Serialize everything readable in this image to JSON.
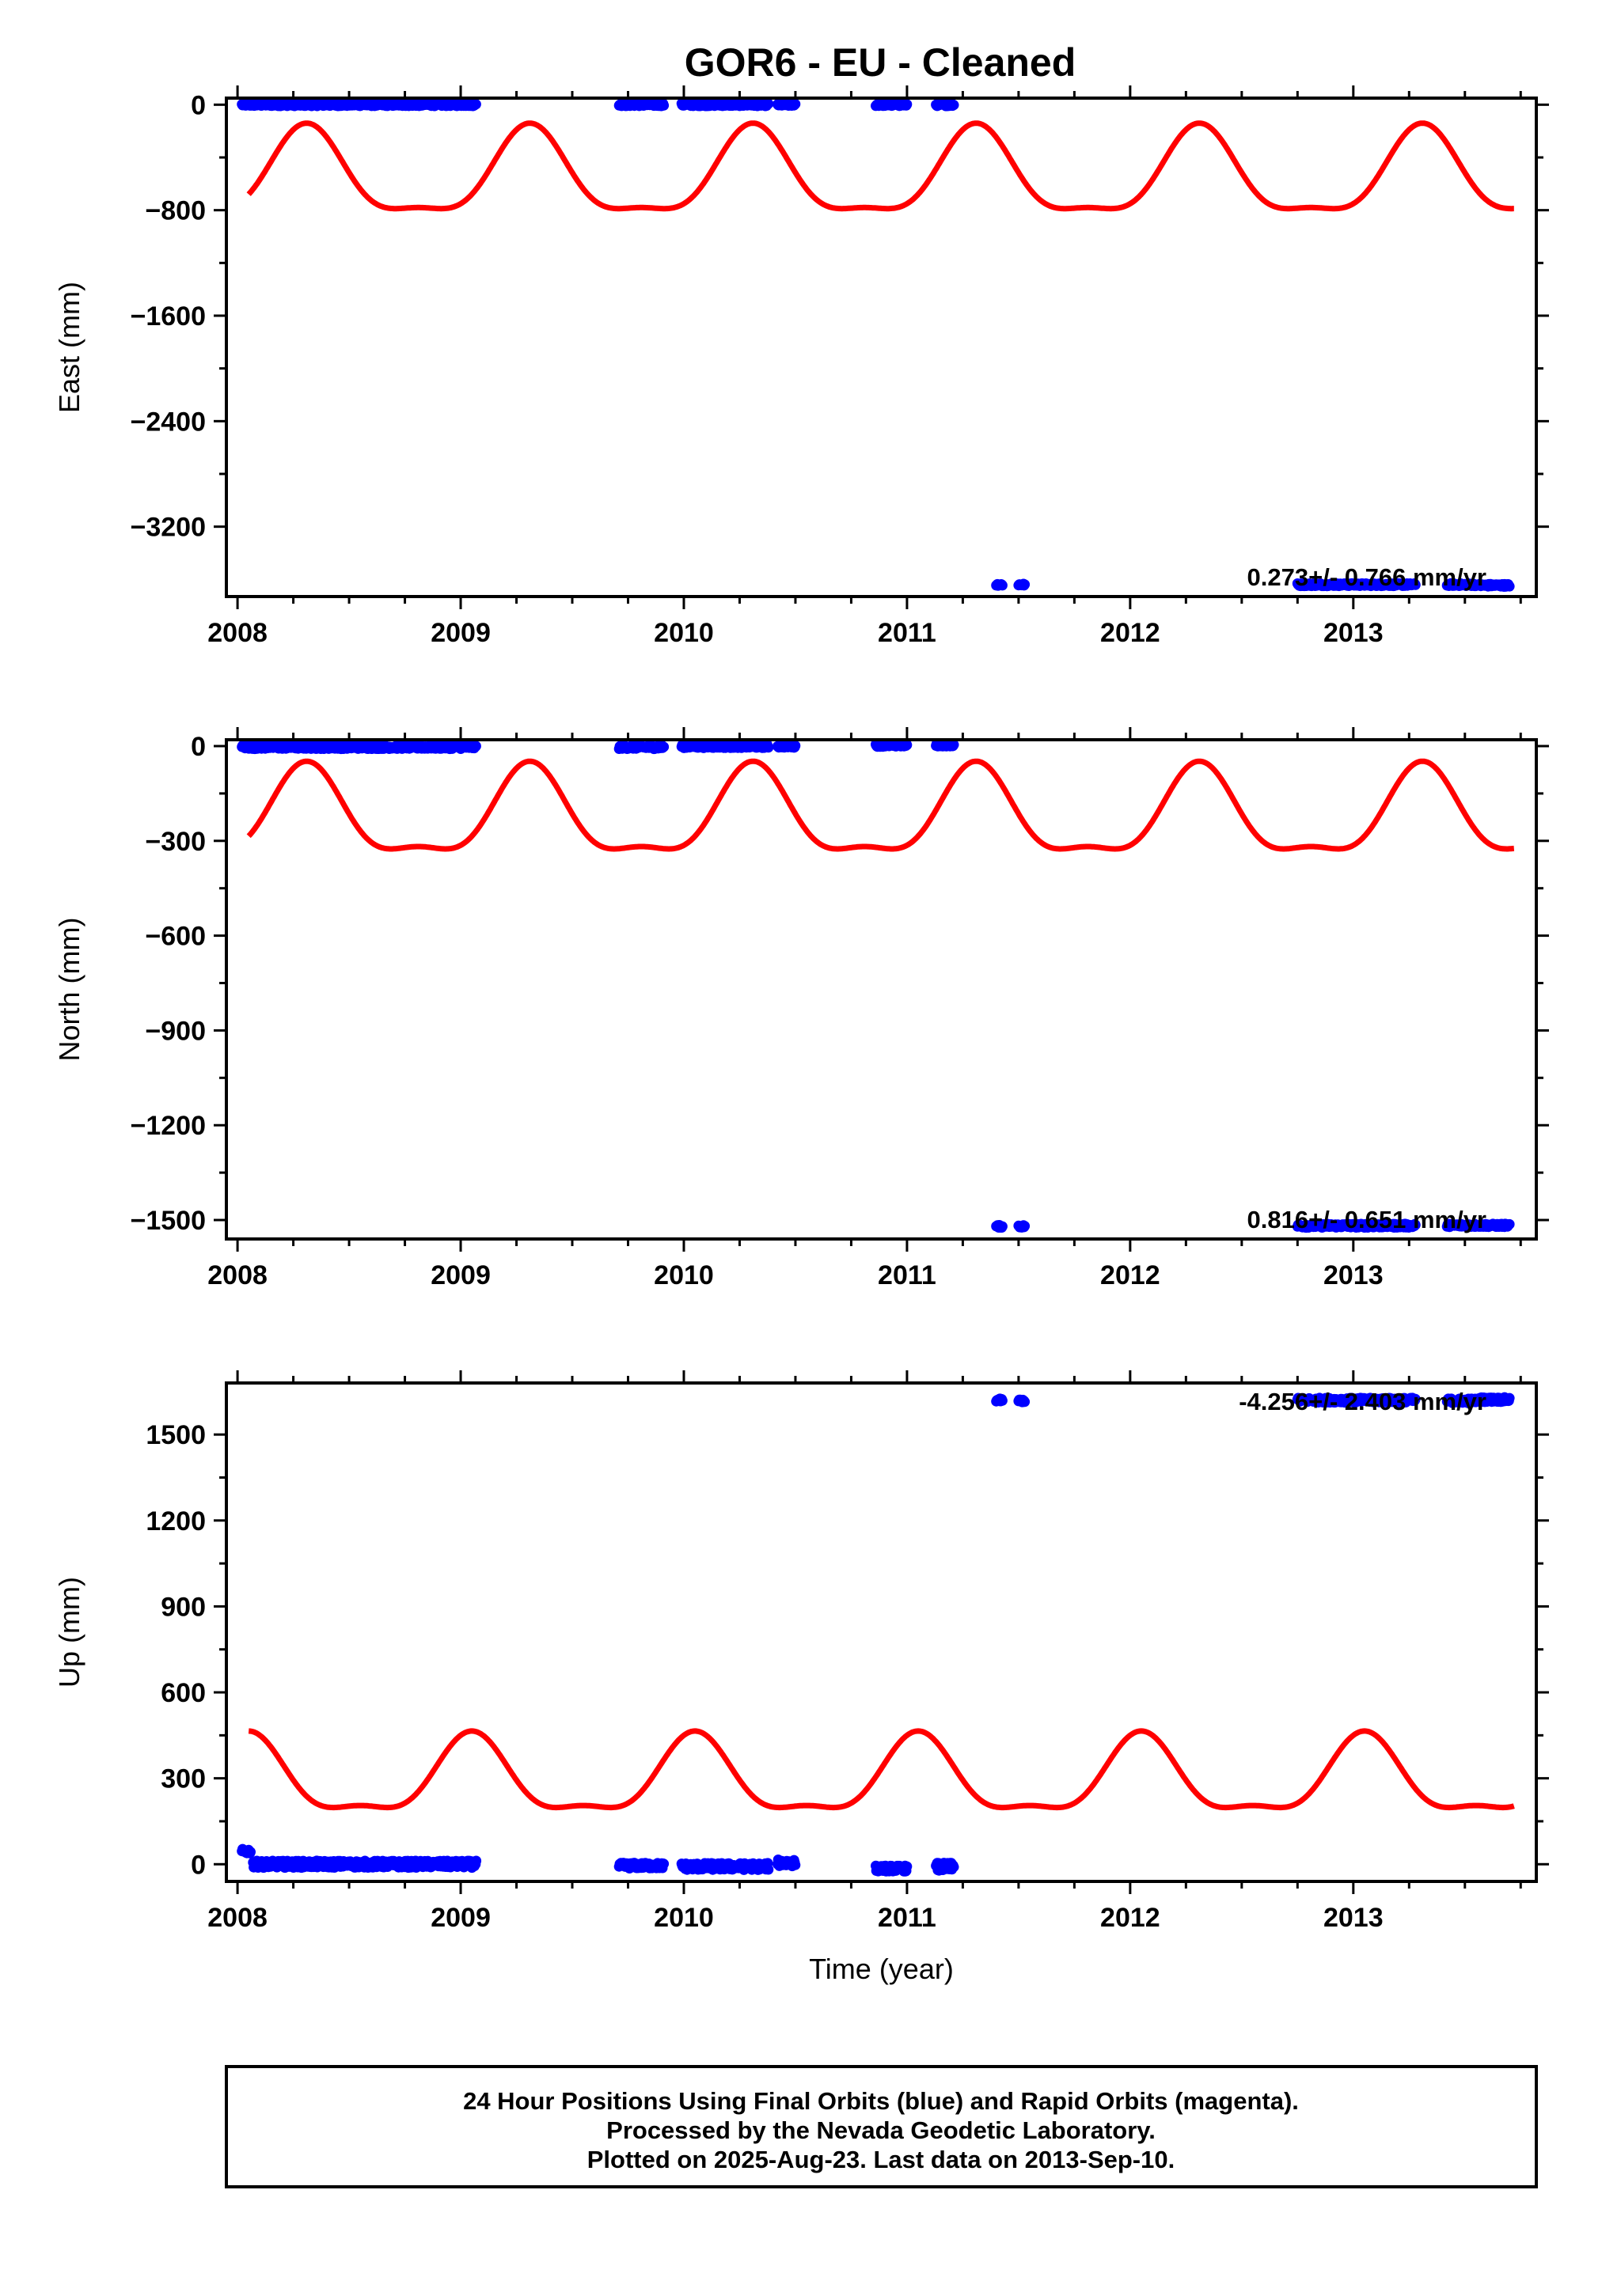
{
  "title": "GOR6  - EU - Cleaned",
  "footer": {
    "line1": "24 Hour Positions Using Final Orbits (blue) and Rapid Orbits (magenta).",
    "line2": "Processed by the Nevada Geodetic Laboratory.",
    "line3": "Plotted on 2025-Aug-23. Last data on 2013-Sep-10."
  },
  "colors": {
    "data": "#0000ff",
    "model": "#ff0000",
    "axis": "#000000"
  },
  "chart_data": [
    {
      "type": "scatter",
      "name": "east",
      "xlabel": "",
      "ylabel": "East (mm)",
      "xlim": [
        2007.95,
        2013.82
      ],
      "ylim": [
        -3730,
        50
      ],
      "xticks": [
        "2008",
        "2009",
        "2010",
        "2011",
        "2012",
        "2013"
      ],
      "yticks": [
        "0",
        "−800",
        "−1600",
        "−2400",
        "−3200"
      ],
      "ytick_values": [
        0,
        -800,
        -1600,
        -2400,
        -3200
      ],
      "rate_label": "0.273+/- 0.766 mm/yr",
      "model": {
        "mean": -560,
        "annual_amp": 320,
        "annual_peak": 0.31,
        "semiannual_amp": 100,
        "semiannual_peak": 0.31
      },
      "segments": [
        {
          "start": 2008.02,
          "end": 2009.07,
          "y": 0,
          "noise": 10
        },
        {
          "start": 2009.71,
          "end": 2009.91,
          "y": 0,
          "noise": 10
        },
        {
          "start": 2009.99,
          "end": 2010.38,
          "y": 0,
          "noise": 10
        },
        {
          "start": 2010.42,
          "end": 2010.5,
          "y": 0,
          "noise": 10
        },
        {
          "start": 2010.86,
          "end": 2011.0,
          "y": 0,
          "noise": 10
        },
        {
          "start": 2011.13,
          "end": 2011.21,
          "y": 0,
          "noise": 10
        },
        {
          "start": 2011.4,
          "end": 2011.43,
          "y": -3640,
          "noise": 8
        },
        {
          "start": 2011.5,
          "end": 2011.53,
          "y": -3640,
          "noise": 8
        },
        {
          "start": 2012.75,
          "end": 2013.28,
          "y": -3640,
          "noise": 10
        },
        {
          "start": 2013.42,
          "end": 2013.55,
          "y": -3640,
          "noise": 10
        },
        {
          "start": 2013.56,
          "end": 2013.7,
          "y": -3645,
          "noise": 10
        }
      ]
    },
    {
      "type": "scatter",
      "name": "north",
      "xlabel": "",
      "ylabel": "North (mm)",
      "xlim": [
        2007.95,
        2013.82
      ],
      "ylim": [
        -1560,
        20
      ],
      "xticks": [
        "2008",
        "2009",
        "2010",
        "2011",
        "2012",
        "2013"
      ],
      "yticks": [
        "0",
        "−300",
        "−600",
        "−900",
        "−1200",
        "−1500"
      ],
      "ytick_values": [
        0,
        -300,
        -600,
        -900,
        -1200,
        -1500
      ],
      "rate_label": "0.816+/- 0.651 mm/yr",
      "model": {
        "mean": -230,
        "annual_amp": 135,
        "annual_peak": 0.31,
        "semiannual_amp": 47,
        "semiannual_peak": 0.31
      },
      "segments": [
        {
          "start": 2008.02,
          "end": 2009.07,
          "y": -3,
          "noise": 6
        },
        {
          "start": 2009.71,
          "end": 2009.91,
          "y": -3,
          "noise": 6
        },
        {
          "start": 2009.99,
          "end": 2010.38,
          "y": 0,
          "noise": 6
        },
        {
          "start": 2010.42,
          "end": 2010.5,
          "y": 0,
          "noise": 5
        },
        {
          "start": 2010.86,
          "end": 2011.0,
          "y": 3,
          "noise": 5
        },
        {
          "start": 2011.13,
          "end": 2011.21,
          "y": 3,
          "noise": 4
        },
        {
          "start": 2011.4,
          "end": 2011.43,
          "y": -1520,
          "noise": 4
        },
        {
          "start": 2011.5,
          "end": 2011.53,
          "y": -1520,
          "noise": 4
        },
        {
          "start": 2012.75,
          "end": 2013.28,
          "y": -1518,
          "noise": 6
        },
        {
          "start": 2013.42,
          "end": 2013.55,
          "y": -1517,
          "noise": 5
        },
        {
          "start": 2013.56,
          "end": 2013.7,
          "y": -1517,
          "noise": 5
        }
      ]
    },
    {
      "type": "scatter",
      "name": "up",
      "xlabel": "Time (year)",
      "ylabel": "Up (mm)",
      "xlim": [
        2007.95,
        2013.82
      ],
      "ylim": [
        -60,
        1680
      ],
      "xticks": [
        "2008",
        "2009",
        "2010",
        "2011",
        "2012",
        "2013"
      ],
      "yticks": [
        "0",
        "300",
        "600",
        "900",
        "1200",
        "1500"
      ],
      "ytick_values": [
        0,
        300,
        600,
        900,
        1200,
        1500
      ],
      "rate_label": "-4.256+/- 2.403 mm/yr",
      "model": {
        "mean": 290,
        "annual_amp": 130,
        "annual_peak": 0.05,
        "semiannual_amp": 45,
        "semiannual_peak": 0.05
      },
      "segments": [
        {
          "start": 2008.02,
          "end": 2008.06,
          "y": 45,
          "noise": 8
        },
        {
          "start": 2008.07,
          "end": 2009.07,
          "y": 0,
          "noise": 12
        },
        {
          "start": 2009.71,
          "end": 2009.91,
          "y": -5,
          "noise": 10
        },
        {
          "start": 2009.99,
          "end": 2010.38,
          "y": -8,
          "noise": 12
        },
        {
          "start": 2010.42,
          "end": 2010.5,
          "y": 5,
          "noise": 12
        },
        {
          "start": 2010.86,
          "end": 2011.0,
          "y": -15,
          "noise": 10
        },
        {
          "start": 2011.13,
          "end": 2011.21,
          "y": -10,
          "noise": 15
        },
        {
          "start": 2011.4,
          "end": 2011.43,
          "y": 1620,
          "noise": 5
        },
        {
          "start": 2011.5,
          "end": 2011.53,
          "y": 1618,
          "noise": 5
        },
        {
          "start": 2012.75,
          "end": 2013.28,
          "y": 1620,
          "noise": 8
        },
        {
          "start": 2013.42,
          "end": 2013.55,
          "y": 1618,
          "noise": 8
        },
        {
          "start": 2013.56,
          "end": 2013.7,
          "y": 1622,
          "noise": 8
        }
      ]
    }
  ]
}
